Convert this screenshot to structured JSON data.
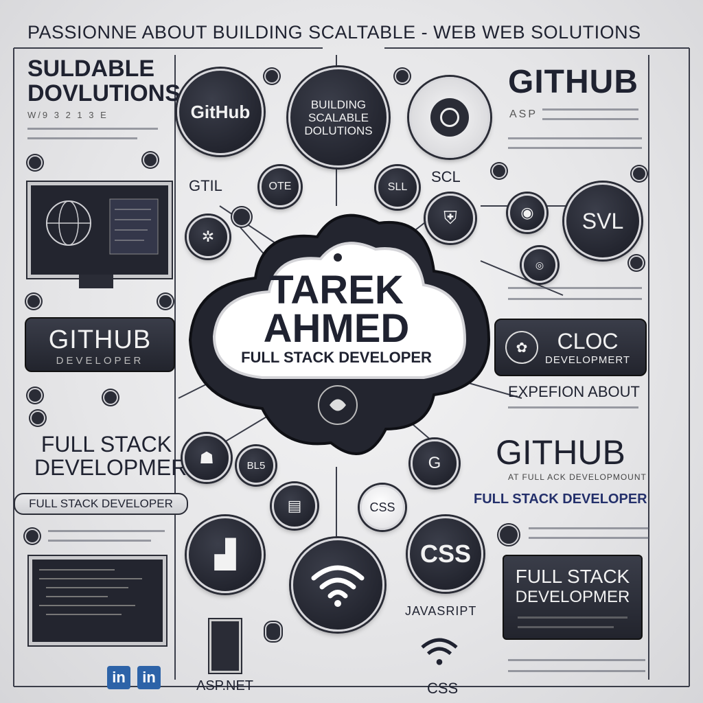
{
  "header": {
    "tagline": "PASSIONNE ABOUT BUILDING SCALTABLE - WEB WEB SOLUTIONS"
  },
  "hero": {
    "name_line1": "TAREK",
    "name_line2": "AHMED",
    "role": "FULL STACK DEVELOPER"
  },
  "left": {
    "heading_line1": "SULDABLE",
    "heading_line2": "DOVLUTIONS",
    "caption": "W/9 3 2 1 3 E",
    "github_pill": {
      "title": "GITHUB",
      "subtitle": "DEVELOPER"
    },
    "full_stack_line1": "FULL STACK",
    "full_stack_line2": "DEVELOPMERT",
    "banner": "FULL STACK DEVELOPER",
    "label_gtil": "GTIL"
  },
  "right": {
    "github_heading": "GITHUB",
    "asp_caption": "ASP",
    "cloc_pill": {
      "title": "CLOC",
      "subtitle": "DEVELOPMERT"
    },
    "expefion": "EXPEFION ABOUT",
    "github_heading2": "GITHUB",
    "github2_caption": "AT FULL ACK DEVELOPMOUNT",
    "full_stack_banner": "FULL STACK DEVELOPER",
    "dark_box_line1": "FULL STACK",
    "dark_box_line2": "DEVELOPMER"
  },
  "icons": {
    "github_circle": "GitHub",
    "building_circle_line1": "BUILDING",
    "building_circle_line2": "SCALABLE",
    "building_circle_line3": "DOLUTIONS",
    "sll": "SLL",
    "scl": "SCL",
    "svl": "SVL",
    "ote": "OTE",
    "bl5": "BL5",
    "css_small": "CSS",
    "css_big": "CSS",
    "javascript": "JAVASRIPT",
    "css_bottom": "CSS",
    "aspnet": "ASP.NET",
    "linkedin_1": "in",
    "linkedin_2": "in"
  },
  "colors": {
    "dark": "#1f2230",
    "background": "#e6e6e8",
    "linkedin": "#2d63a8",
    "banner_text": "#24306b"
  }
}
